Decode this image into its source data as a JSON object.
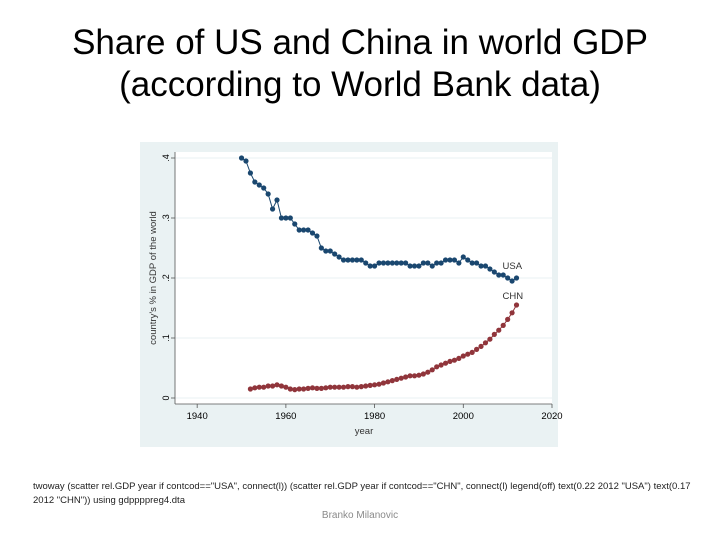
{
  "slide": {
    "title_line1": "Share of US and China in world GDP",
    "title_line2": "(according to World Bank data)",
    "caption": "twoway (scatter rel.GDP year if contcod==\"USA\", connect(l)) (scatter rel.GDP year if contcod==\"CHN\", connect(l) legend(off) text(0.22 2012 \"USA\") text(0.17 2012 \"CHN\")) using gdppppreg4.dta",
    "footer": "Branko Milanovic"
  },
  "colors": {
    "background": "#ffffff",
    "plot_outer": "#eaf2f3",
    "plot_inner": "#ffffff",
    "grid": "#eaf2f3",
    "usa": "#1a476f",
    "chn": "#90353b",
    "axis_text": "#000000"
  },
  "chart_data": {
    "type": "line",
    "xlabel": "year",
    "ylabel": "country's % in GDP of the world",
    "xlim": [
      1935,
      2020
    ],
    "ylim": [
      -0.01,
      0.41
    ],
    "xticks": [
      1940,
      1960,
      1980,
      2000,
      2020
    ],
    "yticks": [
      0,
      0.1,
      0.2,
      0.3,
      0.4
    ],
    "ytick_labels": [
      "0",
      ".1",
      ".2",
      ".3",
      ".4"
    ],
    "grid": true,
    "legend": "off",
    "annotations": [
      {
        "text": "USA",
        "x": 2012,
        "y": 0.22
      },
      {
        "text": "CHN",
        "x": 2012,
        "y": 0.17
      }
    ],
    "series": [
      {
        "name": "USA",
        "x": [
          1950,
          1951,
          1952,
          1953,
          1954,
          1955,
          1956,
          1957,
          1958,
          1959,
          1960,
          1961,
          1962,
          1963,
          1964,
          1965,
          1966,
          1967,
          1968,
          1969,
          1970,
          1971,
          1972,
          1973,
          1974,
          1975,
          1976,
          1977,
          1978,
          1979,
          1980,
          1981,
          1982,
          1983,
          1984,
          1985,
          1986,
          1987,
          1988,
          1989,
          1990,
          1991,
          1992,
          1993,
          1994,
          1995,
          1996,
          1997,
          1998,
          1999,
          2000,
          2001,
          2002,
          2003,
          2004,
          2005,
          2006,
          2007,
          2008,
          2009,
          2010,
          2011,
          2012
        ],
        "values": [
          0.4,
          0.395,
          0.375,
          0.36,
          0.355,
          0.35,
          0.34,
          0.315,
          0.33,
          0.3,
          0.3,
          0.3,
          0.29,
          0.28,
          0.28,
          0.28,
          0.275,
          0.27,
          0.25,
          0.245,
          0.245,
          0.24,
          0.235,
          0.23,
          0.23,
          0.23,
          0.23,
          0.23,
          0.225,
          0.22,
          0.22,
          0.225,
          0.225,
          0.225,
          0.225,
          0.225,
          0.225,
          0.225,
          0.22,
          0.22,
          0.22,
          0.225,
          0.225,
          0.22,
          0.225,
          0.225,
          0.23,
          0.23,
          0.23,
          0.225,
          0.235,
          0.23,
          0.225,
          0.225,
          0.22,
          0.22,
          0.215,
          0.21,
          0.205,
          0.205,
          0.2,
          0.195,
          0.2
        ]
      },
      {
        "name": "CHN",
        "x": [
          1952,
          1953,
          1954,
          1955,
          1956,
          1957,
          1958,
          1959,
          1960,
          1961,
          1962,
          1963,
          1964,
          1965,
          1966,
          1967,
          1968,
          1969,
          1970,
          1971,
          1972,
          1973,
          1974,
          1975,
          1976,
          1977,
          1978,
          1979,
          1980,
          1981,
          1982,
          1983,
          1984,
          1985,
          1986,
          1987,
          1988,
          1989,
          1990,
          1991,
          1992,
          1993,
          1994,
          1995,
          1996,
          1997,
          1998,
          1999,
          2000,
          2001,
          2002,
          2003,
          2004,
          2005,
          2006,
          2007,
          2008,
          2009,
          2010,
          2011,
          2012
        ],
        "values": [
          0.015,
          0.017,
          0.018,
          0.018,
          0.02,
          0.02,
          0.022,
          0.02,
          0.018,
          0.015,
          0.014,
          0.015,
          0.015,
          0.016,
          0.017,
          0.016,
          0.016,
          0.017,
          0.018,
          0.018,
          0.018,
          0.018,
          0.019,
          0.019,
          0.018,
          0.019,
          0.02,
          0.021,
          0.022,
          0.023,
          0.025,
          0.027,
          0.029,
          0.031,
          0.033,
          0.035,
          0.037,
          0.037,
          0.038,
          0.04,
          0.043,
          0.047,
          0.052,
          0.055,
          0.058,
          0.061,
          0.063,
          0.066,
          0.07,
          0.073,
          0.076,
          0.081,
          0.086,
          0.092,
          0.098,
          0.106,
          0.113,
          0.121,
          0.131,
          0.142,
          0.155
        ]
      }
    ]
  }
}
